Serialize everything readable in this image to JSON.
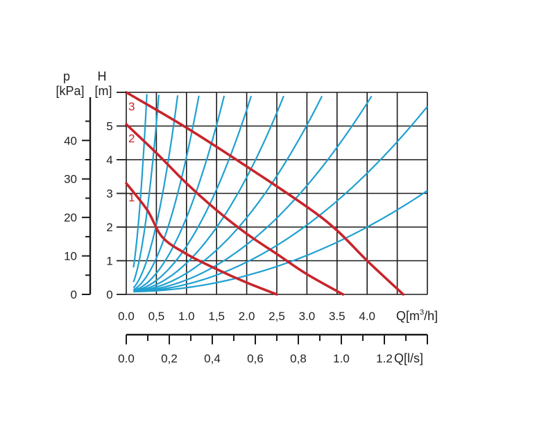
{
  "chart_data": {
    "type": "line",
    "title": "",
    "axes": {
      "pressure": {
        "title_line1": "p",
        "title_line2": "[kPa]",
        "range": [
          0,
          50
        ],
        "ticks": [
          "0",
          "10",
          "20",
          "30",
          "40"
        ],
        "tick_values": [
          0,
          10,
          20,
          30,
          40
        ],
        "minor_step": 5
      },
      "head": {
        "title_line1": "H",
        "title_line2": "[m]",
        "range": [
          0,
          6
        ],
        "ticks": [
          "0",
          "1",
          "2",
          "3",
          "4",
          "5"
        ],
        "tick_values": [
          0,
          1,
          2,
          3,
          4,
          5
        ]
      },
      "flow_m3h": {
        "range": [
          0,
          5
        ],
        "ticks": [
          "0.0",
          "0,5",
          "1.0",
          "1,5",
          "2.0",
          "2,5",
          "3.0",
          "3.5",
          "4.0"
        ],
        "tick_values": [
          0,
          0.5,
          1.0,
          1.5,
          2.0,
          2.5,
          3.0,
          3.5,
          4.0
        ],
        "title_prefix": "Q[m",
        "title_sup": "3",
        "title_suffix": "/h]"
      },
      "flow_ls": {
        "range": [
          0,
          1.4
        ],
        "ticks": [
          "0.0",
          "0,2",
          "0,4",
          "0,6",
          "0,8",
          "1.0",
          "1.2"
        ],
        "tick_values": [
          0,
          0.2,
          0.4,
          0.6,
          0.8,
          1.0,
          1.2
        ],
        "minor_step": 0.1,
        "title": "Q[l/s]"
      }
    },
    "grid": true,
    "pump_curves": [
      {
        "name": "1",
        "points": [
          [
            0,
            3.3
          ],
          [
            0.35,
            2.5
          ],
          [
            0.6,
            1.7
          ],
          [
            1.0,
            1.2
          ],
          [
            1.5,
            0.75
          ],
          [
            2.0,
            0.35
          ],
          [
            2.5,
            0
          ]
        ]
      },
      {
        "name": "2",
        "points": [
          [
            0,
            5.05
          ],
          [
            0.5,
            4.2
          ],
          [
            1.0,
            3.3
          ],
          [
            1.5,
            2.5
          ],
          [
            2.0,
            1.8
          ],
          [
            2.5,
            1.2
          ],
          [
            3.0,
            0.6
          ],
          [
            3.6,
            0
          ]
        ]
      },
      {
        "name": "3",
        "points": [
          [
            0,
            6.0
          ],
          [
            1.0,
            4.95
          ],
          [
            2.0,
            3.8
          ],
          [
            3.0,
            2.6
          ],
          [
            3.5,
            1.9
          ],
          [
            4.0,
            1.0
          ],
          [
            4.6,
            0
          ]
        ]
      }
    ],
    "system_curves": [
      {
        "k": 50
      },
      {
        "k": 20
      },
      {
        "k": 8
      },
      {
        "k": 4
      },
      {
        "k": 2.2
      },
      {
        "k": 1.35
      },
      {
        "k": 0.85
      },
      {
        "k": 0.55
      },
      {
        "k": 0.35
      },
      {
        "k": 0.22
      },
      {
        "k": 0.12
      }
    ],
    "colors": {
      "pump_curve": "#c8242b",
      "system_curve": "#1fa0d0",
      "grid": "#1a1a1a",
      "text": "#222222"
    }
  }
}
